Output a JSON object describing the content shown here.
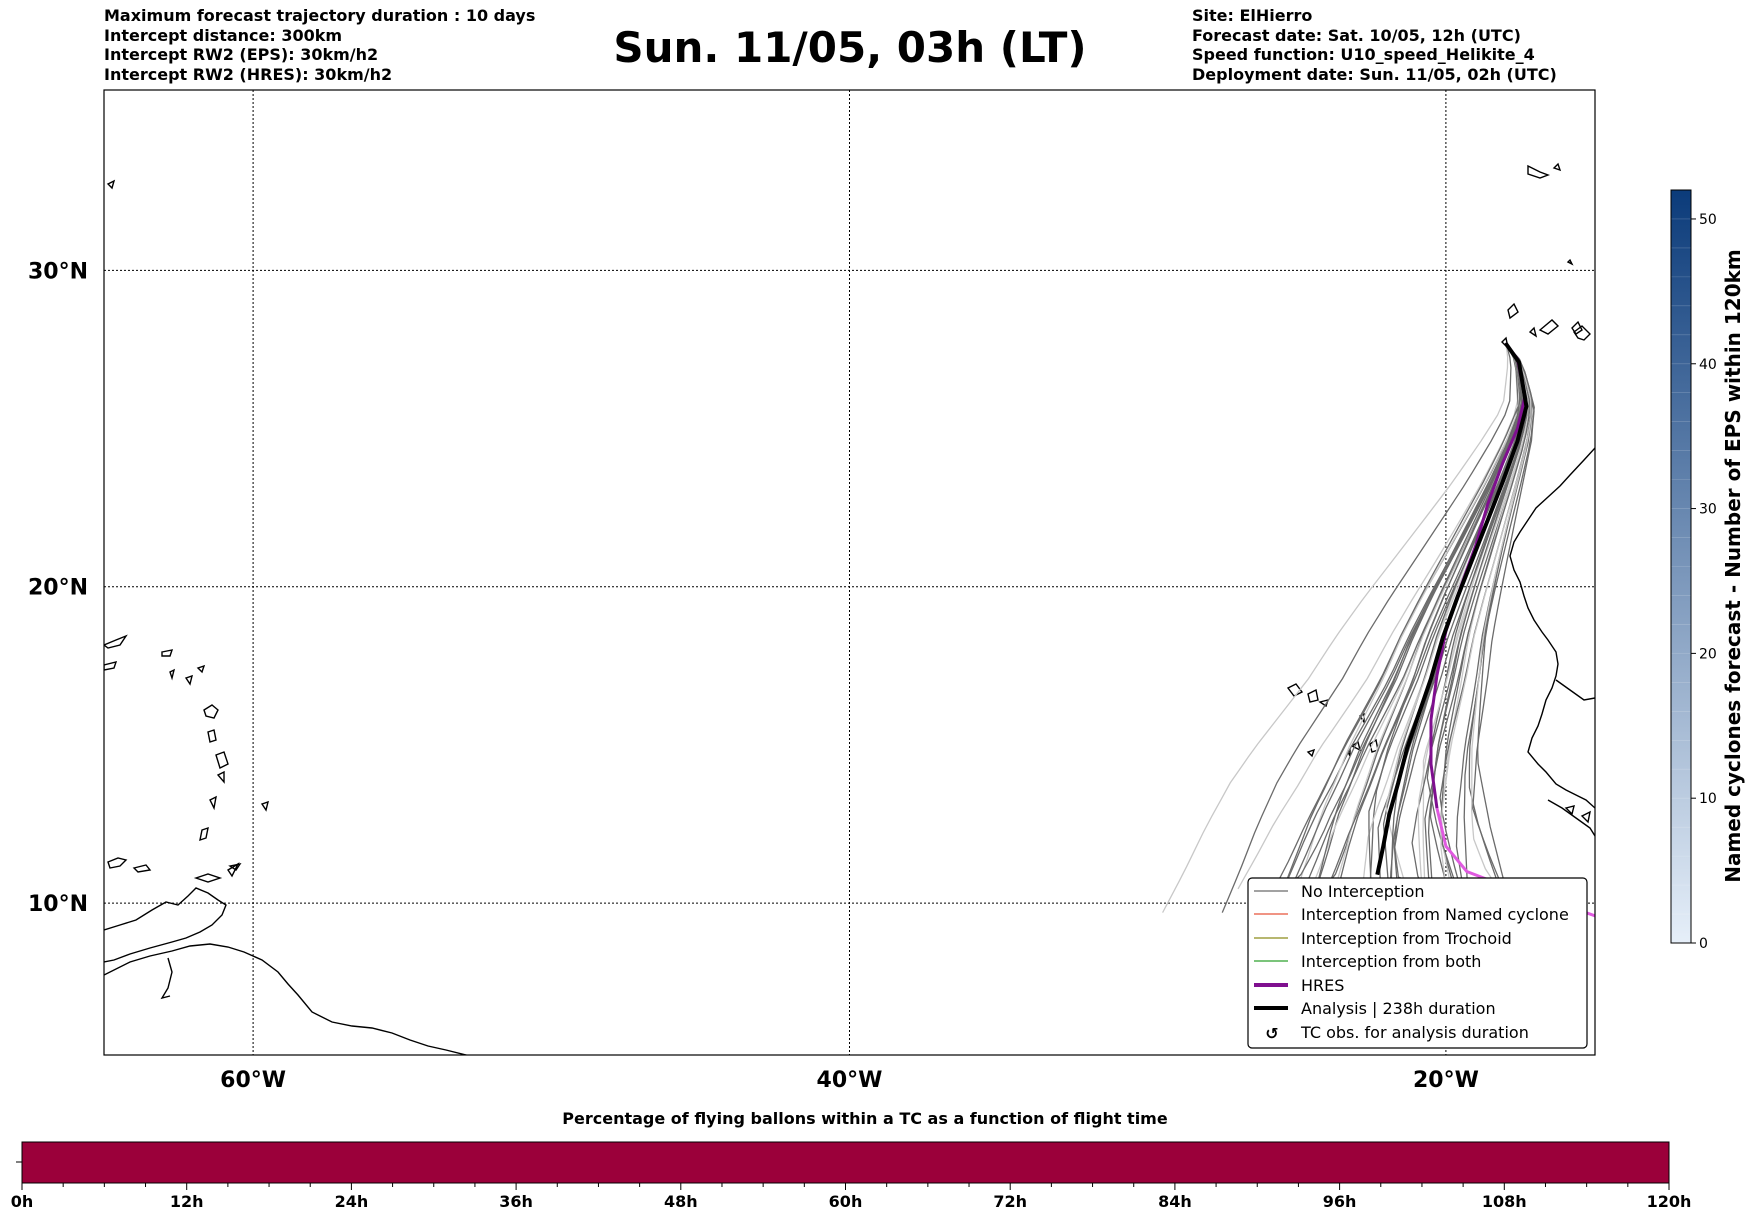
{
  "header": {
    "left": [
      "Maximum forecast trajectory duration : 10 days",
      "Intercept distance: 300km",
      "Intercept RW2 (EPS):  30km/h2",
      "Intercept RW2 (HRES): 30km/h2"
    ],
    "right": [
      "Site: ElHierro",
      "Forecast date: Sat. 10/05, 12h (UTC)",
      "Speed function: U10_speed_Helikite_4",
      "Deployment date: Sun. 11/05, 02h (UTC)"
    ],
    "title": "Sun. 11/05, 03h (LT)"
  },
  "map": {
    "lon_ticks": [
      {
        "lon": -60,
        "label": "60°W"
      },
      {
        "lon": -40,
        "label": "40°W"
      },
      {
        "lon": -20,
        "label": "20°W"
      }
    ],
    "lat_ticks": [
      {
        "lat": 30,
        "label": "30°N"
      },
      {
        "lat": 20,
        "label": "20°N"
      },
      {
        "lat": 10,
        "label": "10°N"
      }
    ],
    "extent": {
      "lon_min": -65,
      "lon_max": -15,
      "lat_min": 5.2,
      "lat_max": 35.7
    },
    "site": {
      "name": "ElHierro",
      "lon": -18.0,
      "lat": 27.7
    },
    "hres_track": [
      [
        -18.0,
        27.7
      ],
      [
        -17.6,
        27.2
      ],
      [
        -17.35,
        26.0
      ],
      [
        -17.6,
        25.0
      ],
      [
        -18.1,
        23.9
      ],
      [
        -18.6,
        22.6
      ],
      [
        -19.0,
        21.3
      ],
      [
        -19.5,
        20.0
      ],
      [
        -20.0,
        18.6
      ],
      [
        -20.3,
        17.2
      ],
      [
        -20.5,
        15.8
      ],
      [
        -20.5,
        14.4
      ],
      [
        -20.3,
        13.0
      ],
      [
        -20.0,
        11.8
      ],
      [
        -19.3,
        11.0
      ],
      [
        -18.2,
        10.6
      ],
      [
        -17.0,
        10.2
      ],
      [
        -15.6,
        9.8
      ],
      [
        -15.0,
        9.6
      ]
    ],
    "analysis_track": [
      [
        -18.0,
        27.7
      ],
      [
        -17.55,
        27.1
      ],
      [
        -17.3,
        25.7
      ],
      [
        -17.6,
        24.6
      ],
      [
        -18.1,
        23.3
      ],
      [
        -18.6,
        22.1
      ],
      [
        -19.1,
        20.9
      ],
      [
        -19.6,
        19.7
      ],
      [
        -20.1,
        18.4
      ],
      [
        -20.5,
        17.1
      ],
      [
        -20.9,
        16.0
      ],
      [
        -21.3,
        14.9
      ],
      [
        -21.6,
        13.8
      ],
      [
        -21.9,
        12.8
      ],
      [
        -22.1,
        11.8
      ],
      [
        -22.3,
        10.9
      ]
    ],
    "colors": {
      "no_interception": "#6b6b6b",
      "named_cyclone": "#e8533a",
      "trochoid": "#8c8c1a",
      "both": "#2ca02c",
      "hres": "#7f0f8f",
      "hres_light": "#e05ae0",
      "analysis": "#000000"
    }
  },
  "legend": {
    "items": [
      {
        "label": "No Interception",
        "style": "thin",
        "color": "#6b6b6b"
      },
      {
        "label": "Interception from Named cyclone",
        "style": "thin",
        "color": "#e8533a"
      },
      {
        "label": "Interception from Trochoid",
        "style": "thin",
        "color": "#8c8c1a"
      },
      {
        "label": "Interception from both",
        "style": "thin",
        "color": "#2ca02c"
      },
      {
        "label": "HRES",
        "style": "thick",
        "color": "#7f0f8f"
      },
      {
        "label": "Analysis | 238h duration",
        "style": "thick",
        "color": "#000000"
      },
      {
        "label": "TC obs. for analysis duration",
        "style": "symbol",
        "color": "#000000"
      }
    ],
    "tc_symbol": "↺"
  },
  "colorbar": {
    "title": "Named cyclones forecast - Number of EPS within 120km",
    "ticks": [
      "0",
      "10",
      "20",
      "30",
      "40",
      "50"
    ],
    "max": 52,
    "color_low": "#e6eff9",
    "color_high": "#0b3b7a"
  },
  "percentage_bar": {
    "title": "Percentage of flying ballons within a TC as a function of flight time",
    "fill_color": "#9b003a",
    "ticks": [
      "0h",
      "12h",
      "24h",
      "36h",
      "48h",
      "60h",
      "72h",
      "84h",
      "96h",
      "108h",
      "120h"
    ]
  }
}
